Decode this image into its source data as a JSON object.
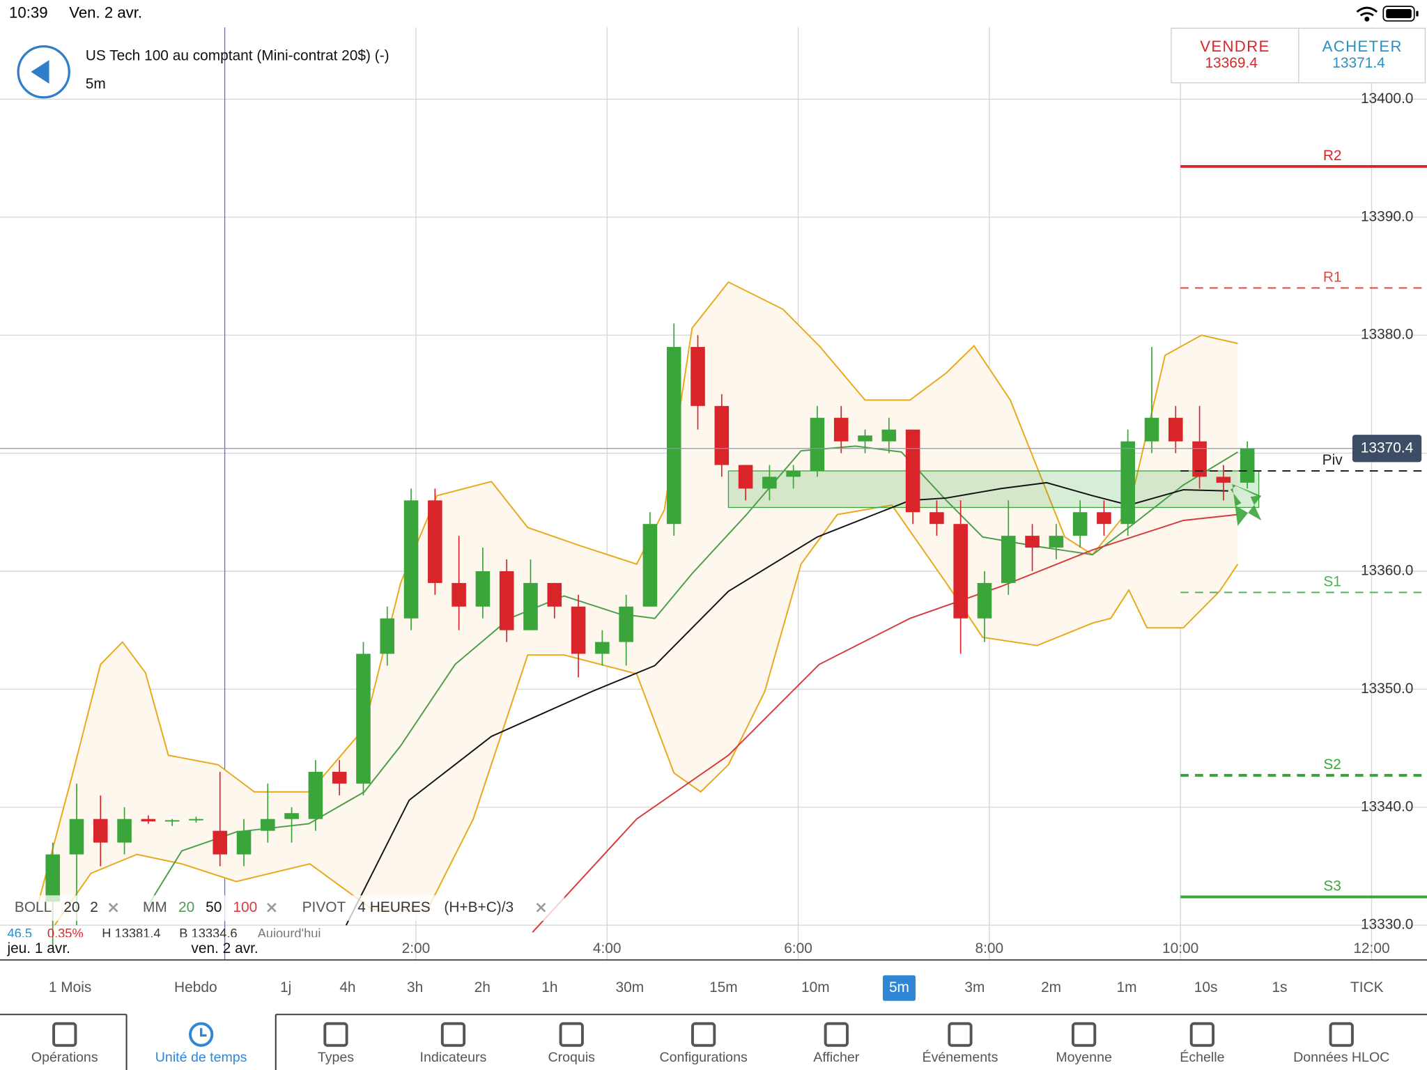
{
  "status_bar": {
    "time": "10:39",
    "date": "Ven. 2 avr."
  },
  "header": {
    "title": "US Tech 100 au comptant (Mini-contrat 20$) (-)",
    "timeframe": "5m"
  },
  "trade": {
    "sell_label": "VENDRE",
    "sell_price": 13369.4,
    "buy_label": "ACHETER",
    "buy_price": 13371.4
  },
  "chart_data": {
    "type": "candlestick",
    "x": [
      -1.8,
      -1.55,
      -1.3,
      -1.05,
      -0.8,
      -0.55,
      -0.3,
      -0.05,
      0.2,
      0.45,
      0.7,
      0.95,
      1.2,
      1.45,
      1.7,
      1.95,
      2.2,
      2.45,
      2.7,
      2.95,
      3.2,
      3.45,
      3.7,
      3.95,
      4.2,
      4.45,
      4.7,
      4.95,
      5.2,
      5.45,
      5.7,
      5.95,
      6.2,
      6.45,
      6.7,
      6.95,
      7.2,
      7.45,
      7.7,
      7.95,
      8.2,
      8.45,
      8.7,
      8.95,
      9.2,
      9.45,
      9.7,
      9.95,
      10.2,
      10.45,
      10.7
    ],
    "open": [
      13332,
      13336,
      13339,
      13337,
      13339,
      13338.8,
      13338.9,
      13338,
      13336,
      13338,
      13339,
      13339,
      13343,
      13342,
      13353,
      13356,
      13366,
      13359,
      13357,
      13360,
      13355,
      13359,
      13357,
      13353,
      13354,
      13357,
      13364,
      13379,
      13374,
      13369,
      13367,
      13368,
      13368.5,
      13373,
      13371,
      13371,
      13372,
      13365,
      13364,
      13356,
      13359,
      13363,
      13362,
      13363,
      13365,
      13364,
      13371,
      13373,
      13371,
      13368,
      13367.5
    ],
    "high": [
      13337,
      13342,
      13341,
      13340,
      13339.3,
      13339,
      13339.2,
      13343,
      13339,
      13342,
      13340,
      13344,
      13344,
      13354,
      13357,
      13367,
      13367,
      13363,
      13362,
      13361,
      13361,
      13359,
      13358,
      13355,
      13358,
      13365,
      13381,
      13380,
      13375,
      13369,
      13369,
      13369,
      13374,
      13374,
      13372,
      13373,
      13372,
      13366,
      13366,
      13360,
      13366,
      13364,
      13364,
      13366,
      13366,
      13372,
      13379,
      13374,
      13374,
      13369,
      13371
    ],
    "low": [
      13328,
      13330,
      13335,
      13336,
      13338.6,
      13338.4,
      13338.7,
      13335,
      13335,
      13337,
      13337,
      13338,
      13341,
      13341,
      13352,
      13355,
      13358,
      13355,
      13356,
      13354,
      13355,
      13356,
      13351,
      13352,
      13352,
      13357,
      13363,
      13372,
      13368,
      13366,
      13366,
      13367,
      13368,
      13370,
      13370,
      13370,
      13364,
      13363,
      13353,
      13354,
      13358,
      13360,
      13361,
      13362,
      13363,
      13363,
      13370,
      13370,
      13367,
      13366,
      13367
    ],
    "close": [
      13336,
      13339,
      13337,
      13339,
      13338.8,
      13338.9,
      13339,
      13336,
      13338,
      13339,
      13339.5,
      13343,
      13342,
      13353,
      13356,
      13366,
      13359,
      13357,
      13360,
      13355,
      13359,
      13357,
      13353,
      13354,
      13357,
      13364,
      13379,
      13374,
      13369,
      13367,
      13368,
      13368.5,
      13373,
      13371,
      13371.5,
      13372,
      13365,
      13364,
      13356,
      13359,
      13363,
      13362,
      13363,
      13365,
      13364,
      13371,
      13373,
      13371,
      13368,
      13367.5,
      13370.4
    ],
    "up_color": "#3aa53a",
    "down_color": "#d9252a",
    "xlim": [
      -2.352,
      12.58
    ],
    "ylim": [
      13327.06,
      13406.09
    ],
    "xticks": [
      {
        "value": 0,
        "label": "ven. 2 avr."
      },
      {
        "value": 2,
        "label": "2:00"
      },
      {
        "value": 4,
        "label": "4:00"
      },
      {
        "value": 6,
        "label": "6:00"
      },
      {
        "value": 8,
        "label": "8:00"
      },
      {
        "value": 10,
        "label": "10:00"
      },
      {
        "value": 12,
        "label": "12:00"
      }
    ],
    "day_label_left": "jeu. 1 avr.",
    "yticks": [
      {
        "value": 13330,
        "label": "13330.0"
      },
      {
        "value": 13340,
        "label": "13340.0"
      },
      {
        "value": 13350,
        "label": "13350.0"
      },
      {
        "value": 13360,
        "label": "13360.0"
      },
      {
        "value": 13370,
        "label": "13370.0"
      },
      {
        "value": 13380,
        "label": "13380.0"
      },
      {
        "value": 13390,
        "label": "13390.0"
      },
      {
        "value": 13400,
        "label": "13400.0"
      }
    ],
    "grid": true,
    "bands": {
      "color": "#e8a817",
      "fill": "#fdf7ee",
      "upper": {
        "x": [
          -1.97,
          -1.59,
          -1.3,
          -1.07,
          -0.83,
          -0.59,
          -0.07,
          0.31,
          0.89,
          1.46,
          1.84,
          2.22,
          2.79,
          3.17,
          3.74,
          4.31,
          4.6,
          4.89,
          5.27,
          5.84,
          6.22,
          6.7,
          7.17,
          7.55,
          7.84,
          8.22,
          8.79,
          9.08,
          9.46,
          9.84,
          10.22,
          10.6
        ],
        "values": [
          13331.3,
          13342.9,
          13352.1,
          13354,
          13351.4,
          13344.4,
          13343.6,
          13341.3,
          13341.3,
          13346.7,
          13359,
          13366.4,
          13367.6,
          13363.7,
          13362.1,
          13360.6,
          13365.2,
          13380.6,
          13384.5,
          13382.2,
          13379.1,
          13374.5,
          13374.5,
          13376.8,
          13379.1,
          13374.5,
          13362.9,
          13361.4,
          13365.2,
          13378.3,
          13380,
          13379.3
        ]
      },
      "lower": {
        "x": [
          -1.78,
          -1.4,
          -0.92,
          -0.45,
          0.12,
          0.89,
          1.55,
          2.12,
          2.6,
          3.17,
          3.55,
          4.31,
          4.7,
          4.98,
          5.27,
          5.65,
          6.03,
          6.41,
          6.98,
          7.55,
          7.93,
          8.5,
          9.08,
          9.27,
          9.46,
          9.65,
          10.03,
          10.41,
          10.6
        ],
        "values": [
          13330,
          13334.4,
          13336,
          13335.2,
          13333.7,
          13335.2,
          13331.3,
          13331.3,
          13339,
          13352.9,
          13352.9,
          13351.3,
          13342.9,
          13341.3,
          13343.6,
          13349.8,
          13360.6,
          13364.8,
          13365.6,
          13359,
          13354.4,
          13353.7,
          13355.6,
          13356,
          13358.4,
          13355.2,
          13355.2,
          13358.3,
          13360.6
        ]
      }
    },
    "lines": [
      {
        "color": "#4a9e4a",
        "x": [
          -0.83,
          -0.45,
          0.12,
          0.88,
          1.46,
          1.84,
          2.41,
          2.98,
          3.55,
          4.12,
          4.5,
          4.89,
          5.46,
          6.03,
          6.6,
          7.08,
          7.55,
          7.93,
          8.5,
          9.08,
          9.46,
          10.03,
          10.6
        ],
        "values": [
          13331.3,
          13336.3,
          13337.9,
          13338.6,
          13341.3,
          13345.2,
          13352.1,
          13356,
          13357.9,
          13356.4,
          13356,
          13359.8,
          13364.8,
          13370.2,
          13370.6,
          13370.1,
          13366,
          13362.9,
          13362.1,
          13361.4,
          13363.7,
          13367.3,
          13370.1
        ]
      },
      {
        "color": "#111111",
        "x": [
          1.27,
          1.93,
          2.79,
          3.84,
          4.5,
          5.27,
          6.2,
          7.17,
          7.55,
          8.12,
          8.6,
          9.08,
          9.46,
          10.03,
          10.5
        ],
        "values": [
          13330,
          13340.6,
          13346,
          13349.8,
          13352,
          13358.3,
          13362.9,
          13366,
          13366.2,
          13367,
          13367.5,
          13366.4,
          13365.6,
          13366.9,
          13366.8
        ]
      },
      {
        "color": "#d63a3a",
        "x": [
          3.22,
          4.31,
          5.27,
          6.22,
          7.17,
          8.12,
          9.08,
          10.03,
          10.6
        ],
        "values": [
          13329.4,
          13339,
          13344.4,
          13352.1,
          13356,
          13358.7,
          13361.8,
          13364.3,
          13364.8
        ]
      }
    ],
    "pivots": {
      "start": 10,
      "levels": [
        {
          "label": "R2",
          "value": 13394.3,
          "color": "#d9252a",
          "style": "solid",
          "width": 3
        },
        {
          "label": "R1",
          "value": 13384,
          "color": "#e04848",
          "style": "dashed",
          "width": 1.5
        },
        {
          "label": "Piv",
          "value": 13368.5,
          "color": "#222222",
          "style": "dashed",
          "width": 1.5
        },
        {
          "label": "S1",
          "value": 13358.2,
          "color": "#4caf50",
          "style": "dashed",
          "width": 1.5
        },
        {
          "label": "S2",
          "value": 13342.7,
          "color": "#3aa53a",
          "style": "dashed",
          "width": 3
        },
        {
          "label": "S3",
          "value": 13332.4,
          "color": "#3aa53a",
          "style": "solid",
          "width": 3
        }
      ]
    },
    "zone": {
      "x": [
        5.27,
        10.82
      ],
      "y": [
        13365.4,
        13368.5
      ],
      "color": "#3aa53a"
    },
    "last_price": {
      "value": 13370.4,
      "color": "#3d4d66"
    }
  },
  "indicators": {
    "boll": {
      "name": "BOLL",
      "period": "20",
      "deviation": "2"
    },
    "mm": {
      "name": "MM",
      "p1": "20",
      "p2": "50",
      "p3": "100"
    },
    "pivot": {
      "name": "PIVOT",
      "period": "4 HEURES",
      "formula": "(H+B+C)/3"
    },
    "stats": [
      "46.5",
      "0.35%",
      "H 13381.4",
      "B 13334.6",
      "Aujourd'hui"
    ]
  },
  "timeframes": {
    "items": [
      "1 Mois",
      "Hebdo",
      "1j",
      "4h",
      "3h",
      "2h",
      "1h",
      "30m",
      "15m",
      "10m",
      "5m",
      "3m",
      "2m",
      "1m",
      "10s",
      "1s",
      "TICK"
    ],
    "selected_index": 10
  },
  "toolbar": {
    "items": [
      "Opérations",
      "Unité de temps",
      "Types",
      "Indicateurs",
      "Croquis",
      "Configurations",
      "Afficher",
      "Événements",
      "Moyenne",
      "Échelle",
      "Données HLOC"
    ],
    "selected_index": 1
  }
}
